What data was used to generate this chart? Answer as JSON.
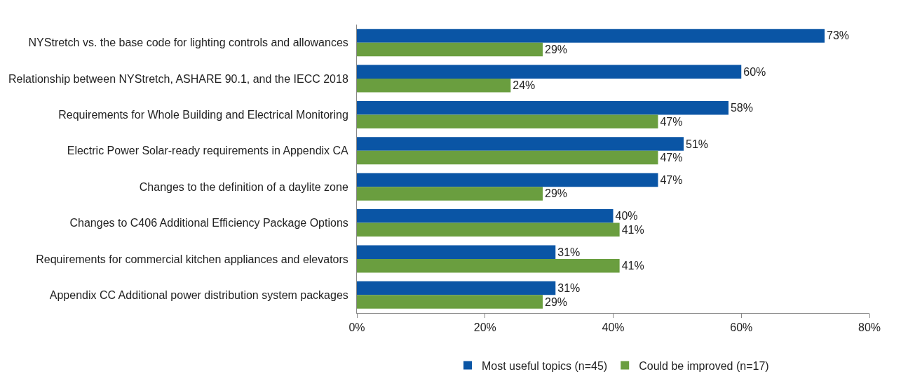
{
  "chart_data": {
    "type": "bar",
    "orientation": "horizontal",
    "categories": [
      "NYStretch vs. the base code for lighting controls and allowances",
      "Relationship between NYStretch, ASHARE 90.1, and the IECC 2018",
      "Requirements for Whole Building and Electrical Monitoring",
      "Electric Power Solar-ready requirements in Appendix CA",
      "Changes to the definition of a daylite zone",
      "Changes to C406 Additional Efficiency Package Options",
      "Requirements for commercial kitchen appliances and elevators",
      "Appendix CC Additional power distribution system packages"
    ],
    "series": [
      {
        "name": "Most useful topics (n=45)",
        "color": "#0a55a5",
        "values": [
          73,
          60,
          58,
          51,
          47,
          40,
          31,
          31
        ],
        "value_labels": [
          "73%",
          "60%",
          "58%",
          "51%",
          "47%",
          "40%",
          "31%",
          "31%"
        ]
      },
      {
        "name": "Could be improved (n=17)",
        "color": "#6a9e3f",
        "values": [
          29,
          24,
          47,
          47,
          29,
          41,
          41,
          29
        ],
        "value_labels": [
          "29%",
          "24%",
          "47%",
          "47%",
          "29%",
          "41%",
          "41%",
          "29%"
        ]
      }
    ],
    "xlim": [
      0,
      80
    ],
    "xticks": [
      {
        "value": 0,
        "label": "0%"
      },
      {
        "value": 20,
        "label": "20%"
      },
      {
        "value": 40,
        "label": "40%"
      },
      {
        "value": 60,
        "label": "60%"
      },
      {
        "value": 80,
        "label": "80%"
      }
    ],
    "grid": false,
    "legend": "bottom"
  }
}
